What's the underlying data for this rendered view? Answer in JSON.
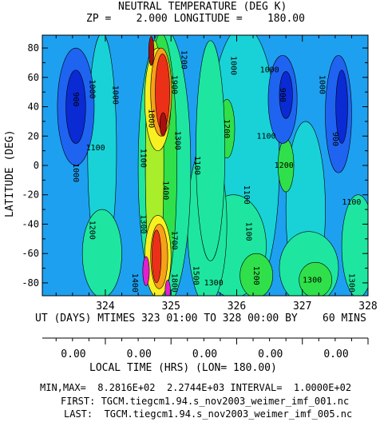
{
  "chart_data": {
    "type": "heatmap",
    "title": "NEUTRAL TEMPERATURE (DEG K)",
    "subtitle": "ZP =    2.000 LONGITUDE =    180.00",
    "xlabel": "UT (DAYS) MTIMES 323 01:00 TO 328 00:00 BY    60 MINS",
    "ylabel": "LATITUDE (DEG)",
    "xlim": [
      323.04,
      328.0
    ],
    "ylim": [
      -88.75,
      88.75
    ],
    "x_ticks": [
      "324",
      "325",
      "326",
      "327",
      "328"
    ],
    "x_tick_values": [
      324,
      325,
      326,
      327,
      328
    ],
    "y_ticks": [
      "80",
      "60",
      "40",
      "20",
      "0",
      "-20",
      "-40",
      "-60",
      "-80"
    ],
    "y_tick_values": [
      80,
      60,
      40,
      20,
      0,
      -20,
      -40,
      -60,
      -80
    ],
    "local_time_axis": {
      "label": "LOCAL TIME (HRS) (LON= 180.00)",
      "ticks": [
        "0.00",
        "0.00",
        "0.00",
        "0.00",
        "0.00"
      ],
      "tick_values": [
        324,
        325,
        326,
        327,
        328
      ]
    },
    "stats": {
      "minmax_line": "MIN,MAX=  8.2816E+02  2.2744E+03 INTERVAL=  1.0000E+02",
      "first_line": "FIRST: TGCM.tiegcm1.94.s_nov2003_weimer_imf_001.nc",
      "last_line": "LAST:  TGCM.tiegcm1.94.s_nov2003_weimer_imf_005.nc"
    },
    "min": 828.16,
    "max": 2274.4,
    "interval": 100,
    "colors": {
      "dark_blue": "#0a2ad4",
      "blue": "#1e64f0",
      "light_blue": "#1ea0f0",
      "cyan": "#19d2d7",
      "aqua_green": "#1ee6a0",
      "green": "#2fe04a",
      "yellow_green": "#a8ee2a",
      "yellow": "#f8f020",
      "orange": "#f8a018",
      "red": "#ec3018",
      "dark_red": "#a81010",
      "magenta": "#e020d0",
      "black": "#000000"
    },
    "contour_labels": [
      {
        "text": "900",
        "x": 323.55,
        "y": 45,
        "rotate": 90
      },
      {
        "text": "1000",
        "x": 323.8,
        "y": 52,
        "rotate": 90
      },
      {
        "text": "1100",
        "x": 323.85,
        "y": 12
      },
      {
        "text": "1000",
        "x": 323.55,
        "y": -5,
        "rotate": 90
      },
      {
        "text": "1000",
        "x": 324.15,
        "y": 48,
        "rotate": 90
      },
      {
        "text": "1200",
        "x": 323.8,
        "y": -44,
        "rotate": 90
      },
      {
        "text": "1100",
        "x": 324.58,
        "y": 5,
        "rotate": 90
      },
      {
        "text": "1300",
        "x": 324.58,
        "y": -40,
        "rotate": 90
      },
      {
        "text": "1400",
        "x": 324.45,
        "y": -80,
        "rotate": 90
      },
      {
        "text": "1800",
        "x": 324.7,
        "y": 32,
        "rotate": 90
      },
      {
        "text": "1900",
        "x": 325.05,
        "y": 55,
        "rotate": 90
      },
      {
        "text": "1200",
        "x": 325.2,
        "y": 72,
        "rotate": 90
      },
      {
        "text": "1300",
        "x": 325.1,
        "y": 17,
        "rotate": 90
      },
      {
        "text": "1400",
        "x": 324.92,
        "y": -17,
        "rotate": 90
      },
      {
        "text": "1700",
        "x": 325.05,
        "y": -51,
        "rotate": 90
      },
      {
        "text": "1800",
        "x": 325.05,
        "y": -80,
        "rotate": 90
      },
      {
        "text": "1500",
        "x": 325.38,
        "y": -75,
        "rotate": 90
      },
      {
        "text": "1300",
        "x": 325.65,
        "y": -80
      },
      {
        "text": "1100",
        "x": 325.4,
        "y": 0,
        "rotate": 90
      },
      {
        "text": "1000",
        "x": 325.95,
        "y": 68,
        "rotate": 90
      },
      {
        "text": "1200",
        "x": 325.85,
        "y": 25,
        "rotate": 90
      },
      {
        "text": "1100",
        "x": 326.18,
        "y": -45,
        "rotate": 90
      },
      {
        "text": "1200",
        "x": 326.3,
        "y": -75,
        "rotate": 90
      },
      {
        "text": "1100",
        "x": 326.15,
        "y": -20,
        "rotate": 90
      },
      {
        "text": "1000",
        "x": 326.5,
        "y": 65
      },
      {
        "text": "1100",
        "x": 326.45,
        "y": 20
      },
      {
        "text": "900",
        "x": 326.7,
        "y": 48,
        "rotate": 90
      },
      {
        "text": "1200",
        "x": 326.72,
        "y": 0
      },
      {
        "text": "1300",
        "x": 327.15,
        "y": -78
      },
      {
        "text": "900",
        "x": 327.5,
        "y": 18,
        "rotate": 90
      },
      {
        "text": "1000",
        "x": 327.3,
        "y": 55,
        "rotate": 90
      },
      {
        "text": "1100",
        "x": 327.75,
        "y": -25
      },
      {
        "text": "1300",
        "x": 327.75,
        "y": -80,
        "rotate": 90
      }
    ]
  }
}
